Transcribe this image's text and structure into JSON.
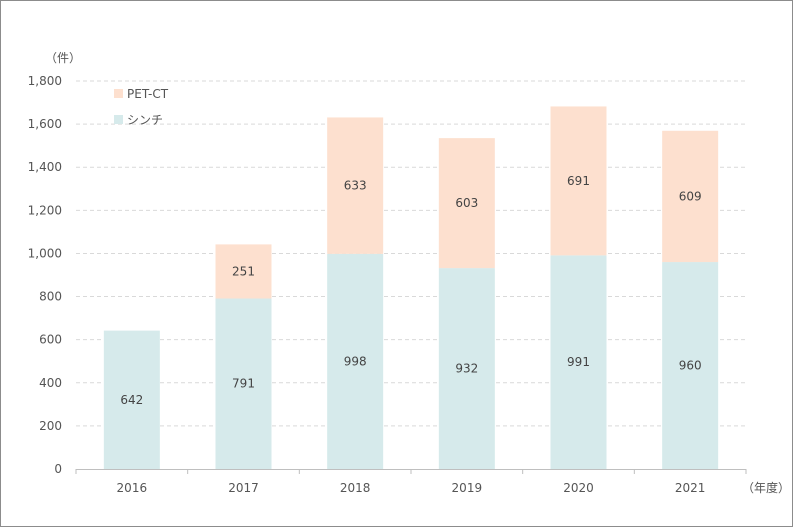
{
  "chart_data": {
    "type": "bar",
    "stacked": true,
    "categories": [
      "2016",
      "2017",
      "2018",
      "2019",
      "2020",
      "2021"
    ],
    "series": [
      {
        "name": "シンチ",
        "values": [
          642,
          791,
          998,
          932,
          991,
          960
        ],
        "color": "#d6eaeb"
      },
      {
        "name": "PET-CT",
        "values": [
          0,
          251,
          633,
          603,
          691,
          609
        ],
        "color": "#fde0cf"
      }
    ],
    "segment_labels": {
      "シンチ": [
        "642",
        "791",
        "998",
        "932",
        "991",
        "960"
      ],
      "PET-CT": [
        "",
        "251",
        "633",
        "603",
        "691",
        "609"
      ]
    },
    "y_unit_label": "（件）",
    "x_unit_label": "（年度）",
    "y_ticks": [
      "0",
      "200",
      "400",
      "600",
      "800",
      "1,000",
      "1,200",
      "1,400",
      "1,600",
      "1,800"
    ],
    "ylim": [
      0,
      1800
    ],
    "grid": true,
    "legend_position": "top-left"
  }
}
